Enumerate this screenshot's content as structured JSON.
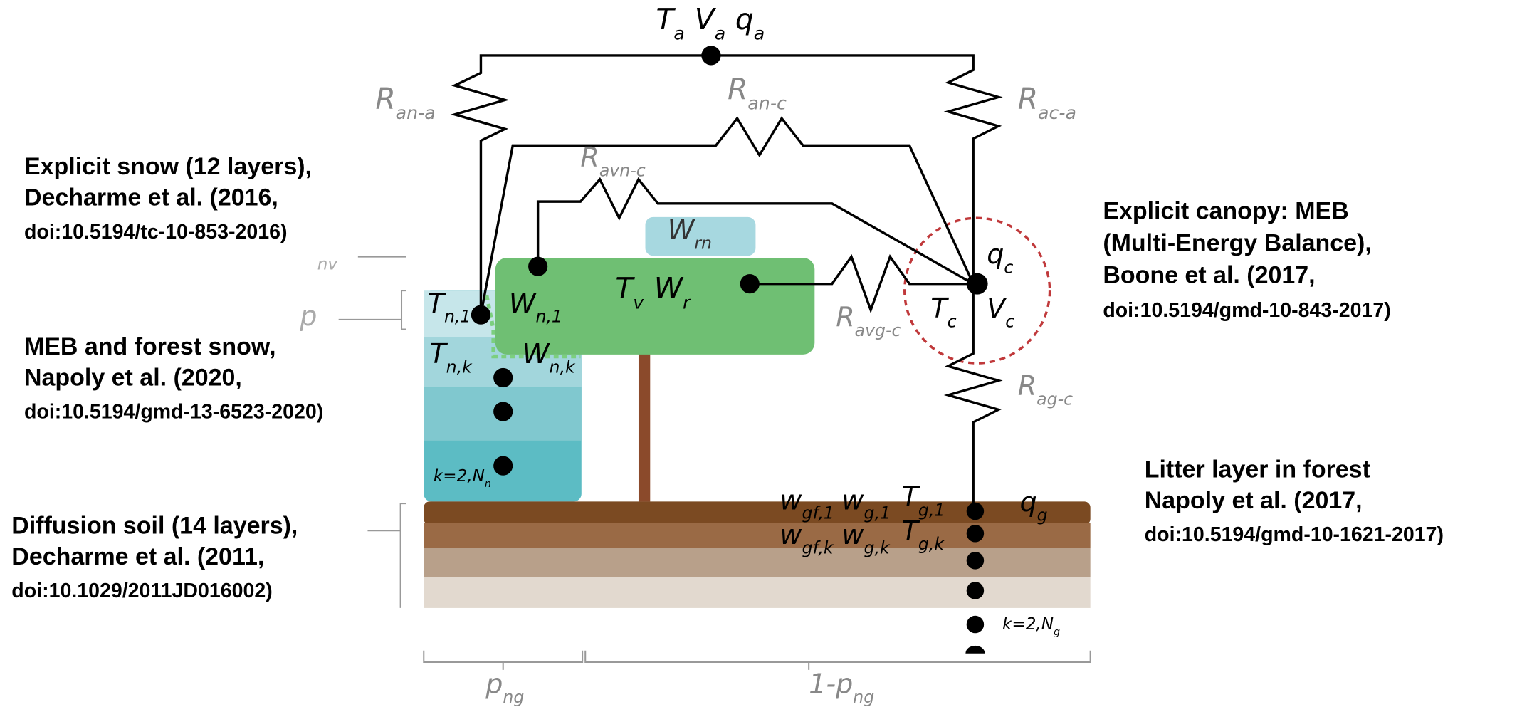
{
  "annotations": [
    {
      "lines": [
        "Explicit snow (12 layers),",
        "Decharme et al. (2016,",
        "doi:10.5194/tc-10-853-2016)"
      ]
    },
    {
      "lines": [
        "MEB and forest snow,",
        "Napoly et al. (2020,",
        "doi:10.5194/gmd-13-6523-2020)"
      ]
    },
    {
      "lines": [
        "Diffusion soil (14 layers),",
        "Decharme et al. (2011,",
        "doi:10.1029/2011JD016002)"
      ]
    },
    {
      "lines": [
        "Explicit canopy: MEB",
        "(Multi-Energy Balance),",
        "Boone et al. (2017,",
        "doi:10.5194/gmd-10-843-2017)"
      ]
    },
    {
      "lines": [
        "Litter layer in forest",
        "Napoly et al. (2017,",
        "doi:10.5194/gmd-10-1621-2017)"
      ]
    }
  ],
  "symbols": [
    {
      "base": "T",
      "sub": "a"
    },
    {
      "base": "V",
      "sub": "a"
    },
    {
      "base": "q",
      "sub": "a"
    },
    {
      "base": "R",
      "sub": "an-a"
    },
    {
      "base": "R",
      "sub": "an-c"
    },
    {
      "base": "R",
      "sub": "ac-a"
    },
    {
      "base": "R",
      "sub": "avn-c"
    },
    {
      "base": "W",
      "sub": "rn"
    },
    {
      "base": "T",
      "sub": "v"
    },
    {
      "base": "W",
      "sub": "r"
    },
    {
      "base": "q",
      "sub": "c"
    },
    {
      "base": "T",
      "sub": "c"
    },
    {
      "base": "V",
      "sub": "c"
    },
    {
      "base": "R",
      "sub": "avg-c"
    },
    {
      "base": "R",
      "sub": "ag-c"
    },
    {
      "base": "T",
      "sub": "n,1"
    },
    {
      "base": "W",
      "sub": "n,1"
    },
    {
      "base": "T",
      "sub": "n,k"
    },
    {
      "base": "W",
      "sub": "n,k"
    },
    {
      "base": "k=2,N",
      "sub": "n"
    },
    {
      "base": "w",
      "sub": "gf,1"
    },
    {
      "base": "w",
      "sub": "g,1"
    },
    {
      "base": "T",
      "sub": "g,1"
    },
    {
      "base": "q",
      "sub": "g"
    },
    {
      "base": "w",
      "sub": "gf,k"
    },
    {
      "base": "w",
      "sub": "g,k"
    },
    {
      "base": "T",
      "sub": "g,k"
    },
    {
      "base": "k=2,N",
      "sub": "g"
    },
    {
      "base": "p",
      "sub": "ng"
    },
    {
      "base": "1-p",
      "sub": "ng"
    },
    {
      "base": "nv",
      "sub": ""
    },
    {
      "base": "p",
      "sub": ""
    }
  ]
}
